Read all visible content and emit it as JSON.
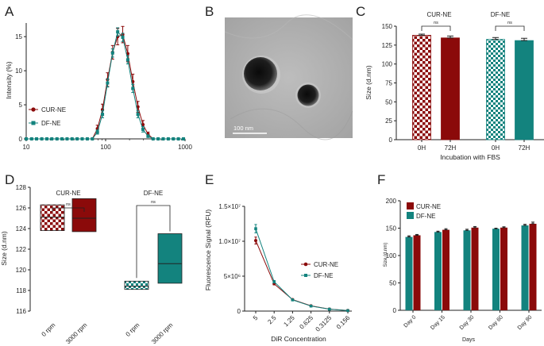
{
  "colors": {
    "cur": "#8b0a0a",
    "df": "#13837e",
    "axis": "#222222"
  },
  "chart_data": [
    {
      "panel": "A",
      "type": "line",
      "xscale": "log",
      "xlim": [
        10,
        1000
      ],
      "ylim": [
        0,
        17
      ],
      "xticks": [
        "10",
        "100",
        "1000"
      ],
      "yticks": [
        "0",
        "5",
        "10",
        "15"
      ],
      "xlabel": "",
      "ylabel": "Intensity (%)",
      "legend": [
        "CUR-NE",
        "DF-NE"
      ],
      "x": [
        10,
        11.7,
        13.5,
        15.7,
        18.2,
        21,
        24.4,
        28.2,
        32.7,
        37.8,
        43.8,
        50.7,
        58.8,
        68.1,
        78.8,
        91.3,
        105.7,
        122.4,
        141.8,
        164.2,
        190.1,
        220.2,
        255,
        295.3,
        342,
        396.1,
        458.7,
        531.2,
        615.1,
        712.4,
        825,
        955.4
      ],
      "series": [
        {
          "name": "CUR-NE",
          "values": [
            0,
            0,
            0,
            0,
            0,
            0,
            0,
            0,
            0,
            0,
            0,
            0,
            0,
            0,
            1.5,
            4.3,
            8.7,
            12.7,
            15.0,
            15.3,
            12.5,
            8.4,
            4.7,
            2.1,
            0.7,
            0,
            0,
            0,
            0,
            0,
            0,
            0
          ],
          "errors": [
            0,
            0,
            0,
            0,
            0,
            0,
            0,
            0,
            0,
            0,
            0,
            0,
            0,
            0,
            0.5,
            0.8,
            1.0,
            1.0,
            1.2,
            1.2,
            1.2,
            1.1,
            0.8,
            0.6,
            0.3,
            0,
            0,
            0,
            0,
            0,
            0,
            0
          ]
        },
        {
          "name": "DF-NE",
          "values": [
            0,
            0,
            0,
            0,
            0,
            0,
            0,
            0,
            0,
            0,
            0,
            0,
            0,
            0,
            1.0,
            3.6,
            8.2,
            12.6,
            15.7,
            14.9,
            11.6,
            7.4,
            3.6,
            1.4,
            0.4,
            0,
            0,
            0,
            0,
            0,
            0,
            0
          ],
          "errors": [
            0,
            0,
            0,
            0,
            0,
            0,
            0,
            0,
            0,
            0,
            0,
            0,
            0,
            0,
            0.3,
            0.5,
            0.6,
            0.6,
            0.6,
            0.6,
            0.6,
            0.6,
            0.5,
            0.4,
            0.2,
            0,
            0,
            0,
            0,
            0,
            0,
            0
          ]
        }
      ]
    },
    {
      "panel": "B",
      "type": "image",
      "scale_bar": "100 nm"
    },
    {
      "panel": "C",
      "type": "bar",
      "ylabel": "Size (d.nm)",
      "xlabel": "Incubation with FBS",
      "ylim": [
        0,
        150
      ],
      "yticks": [
        "0",
        "25",
        "50",
        "75",
        "100",
        "125",
        "150"
      ],
      "groups": [
        "CUR-NE",
        "DF-NE"
      ],
      "categories": [
        "0H",
        "72H",
        "0H",
        "72H"
      ],
      "values": [
        138,
        134.5,
        132.5,
        131
      ],
      "errors": [
        1.5,
        2.5,
        2.5,
        3
      ],
      "significance": [
        "ns",
        "ns"
      ]
    },
    {
      "panel": "D",
      "type": "box",
      "ylabel": "Size (d.nm)",
      "ylim": [
        116,
        128
      ],
      "yticks": [
        "116",
        "118",
        "120",
        "122",
        "124",
        "126",
        "128"
      ],
      "groups": [
        "CUR-NE",
        "DF-NE"
      ],
      "categories": [
        "0 rpm",
        "3000 rpm",
        "0 rpm",
        "3000 rpm"
      ],
      "boxes": [
        {
          "low": 123.8,
          "median": 125.1,
          "high": 126.3
        },
        {
          "low": 123.7,
          "median": 125.0,
          "high": 126.9
        },
        {
          "low": 118.1,
          "median": 118.4,
          "high": 118.9
        },
        {
          "low": 118.7,
          "median": 120.6,
          "high": 123.5
        }
      ],
      "significance": [
        "ns",
        "ns"
      ]
    },
    {
      "panel": "E",
      "type": "line",
      "xlabel": "DiR Concentration",
      "ylabel": "Fluorescence Signal (RFU)",
      "ylim": [
        0,
        15000000
      ],
      "yticks": [
        "0",
        "5×10⁶",
        "1.0×10⁷",
        "1.5×10⁷"
      ],
      "categories": [
        "5",
        "2.5",
        "1.25",
        "0.625",
        "0.3125",
        "0.156"
      ],
      "legend": [
        "CUR-NE",
        "DF-NE"
      ],
      "series": [
        {
          "name": "CUR-NE",
          "values": [
            10100000,
            3900000,
            1650000,
            750000,
            280000,
            80000
          ],
          "errors": [
            500000,
            150000,
            50000,
            30000,
            20000,
            10000
          ]
        },
        {
          "name": "DF-NE",
          "values": [
            11800000,
            4200000,
            1600000,
            720000,
            270000,
            70000
          ],
          "errors": [
            600000,
            180000,
            50000,
            30000,
            20000,
            10000
          ]
        }
      ]
    },
    {
      "panel": "F",
      "type": "bar",
      "xlabel": "Days",
      "ylabel": "Size (d.nm)",
      "ylim": [
        0,
        200
      ],
      "yticks": [
        "0",
        "50",
        "100",
        "150",
        "200"
      ],
      "categories": [
        "Day 0",
        "Day 15",
        "Day 30",
        "Day 60",
        "Day 90"
      ],
      "legend": [
        "CUR-NE",
        "DF-NE"
      ],
      "series": [
        {
          "name": "DF-NE",
          "values": [
            134,
            143,
            146,
            149,
            155
          ],
          "errors": [
            2,
            1.5,
            2,
            1,
            2
          ]
        },
        {
          "name": "CUR-NE",
          "values": [
            137,
            147,
            151,
            151,
            158
          ],
          "errors": [
            1.5,
            2,
            2,
            1.5,
            3
          ]
        }
      ]
    }
  ]
}
